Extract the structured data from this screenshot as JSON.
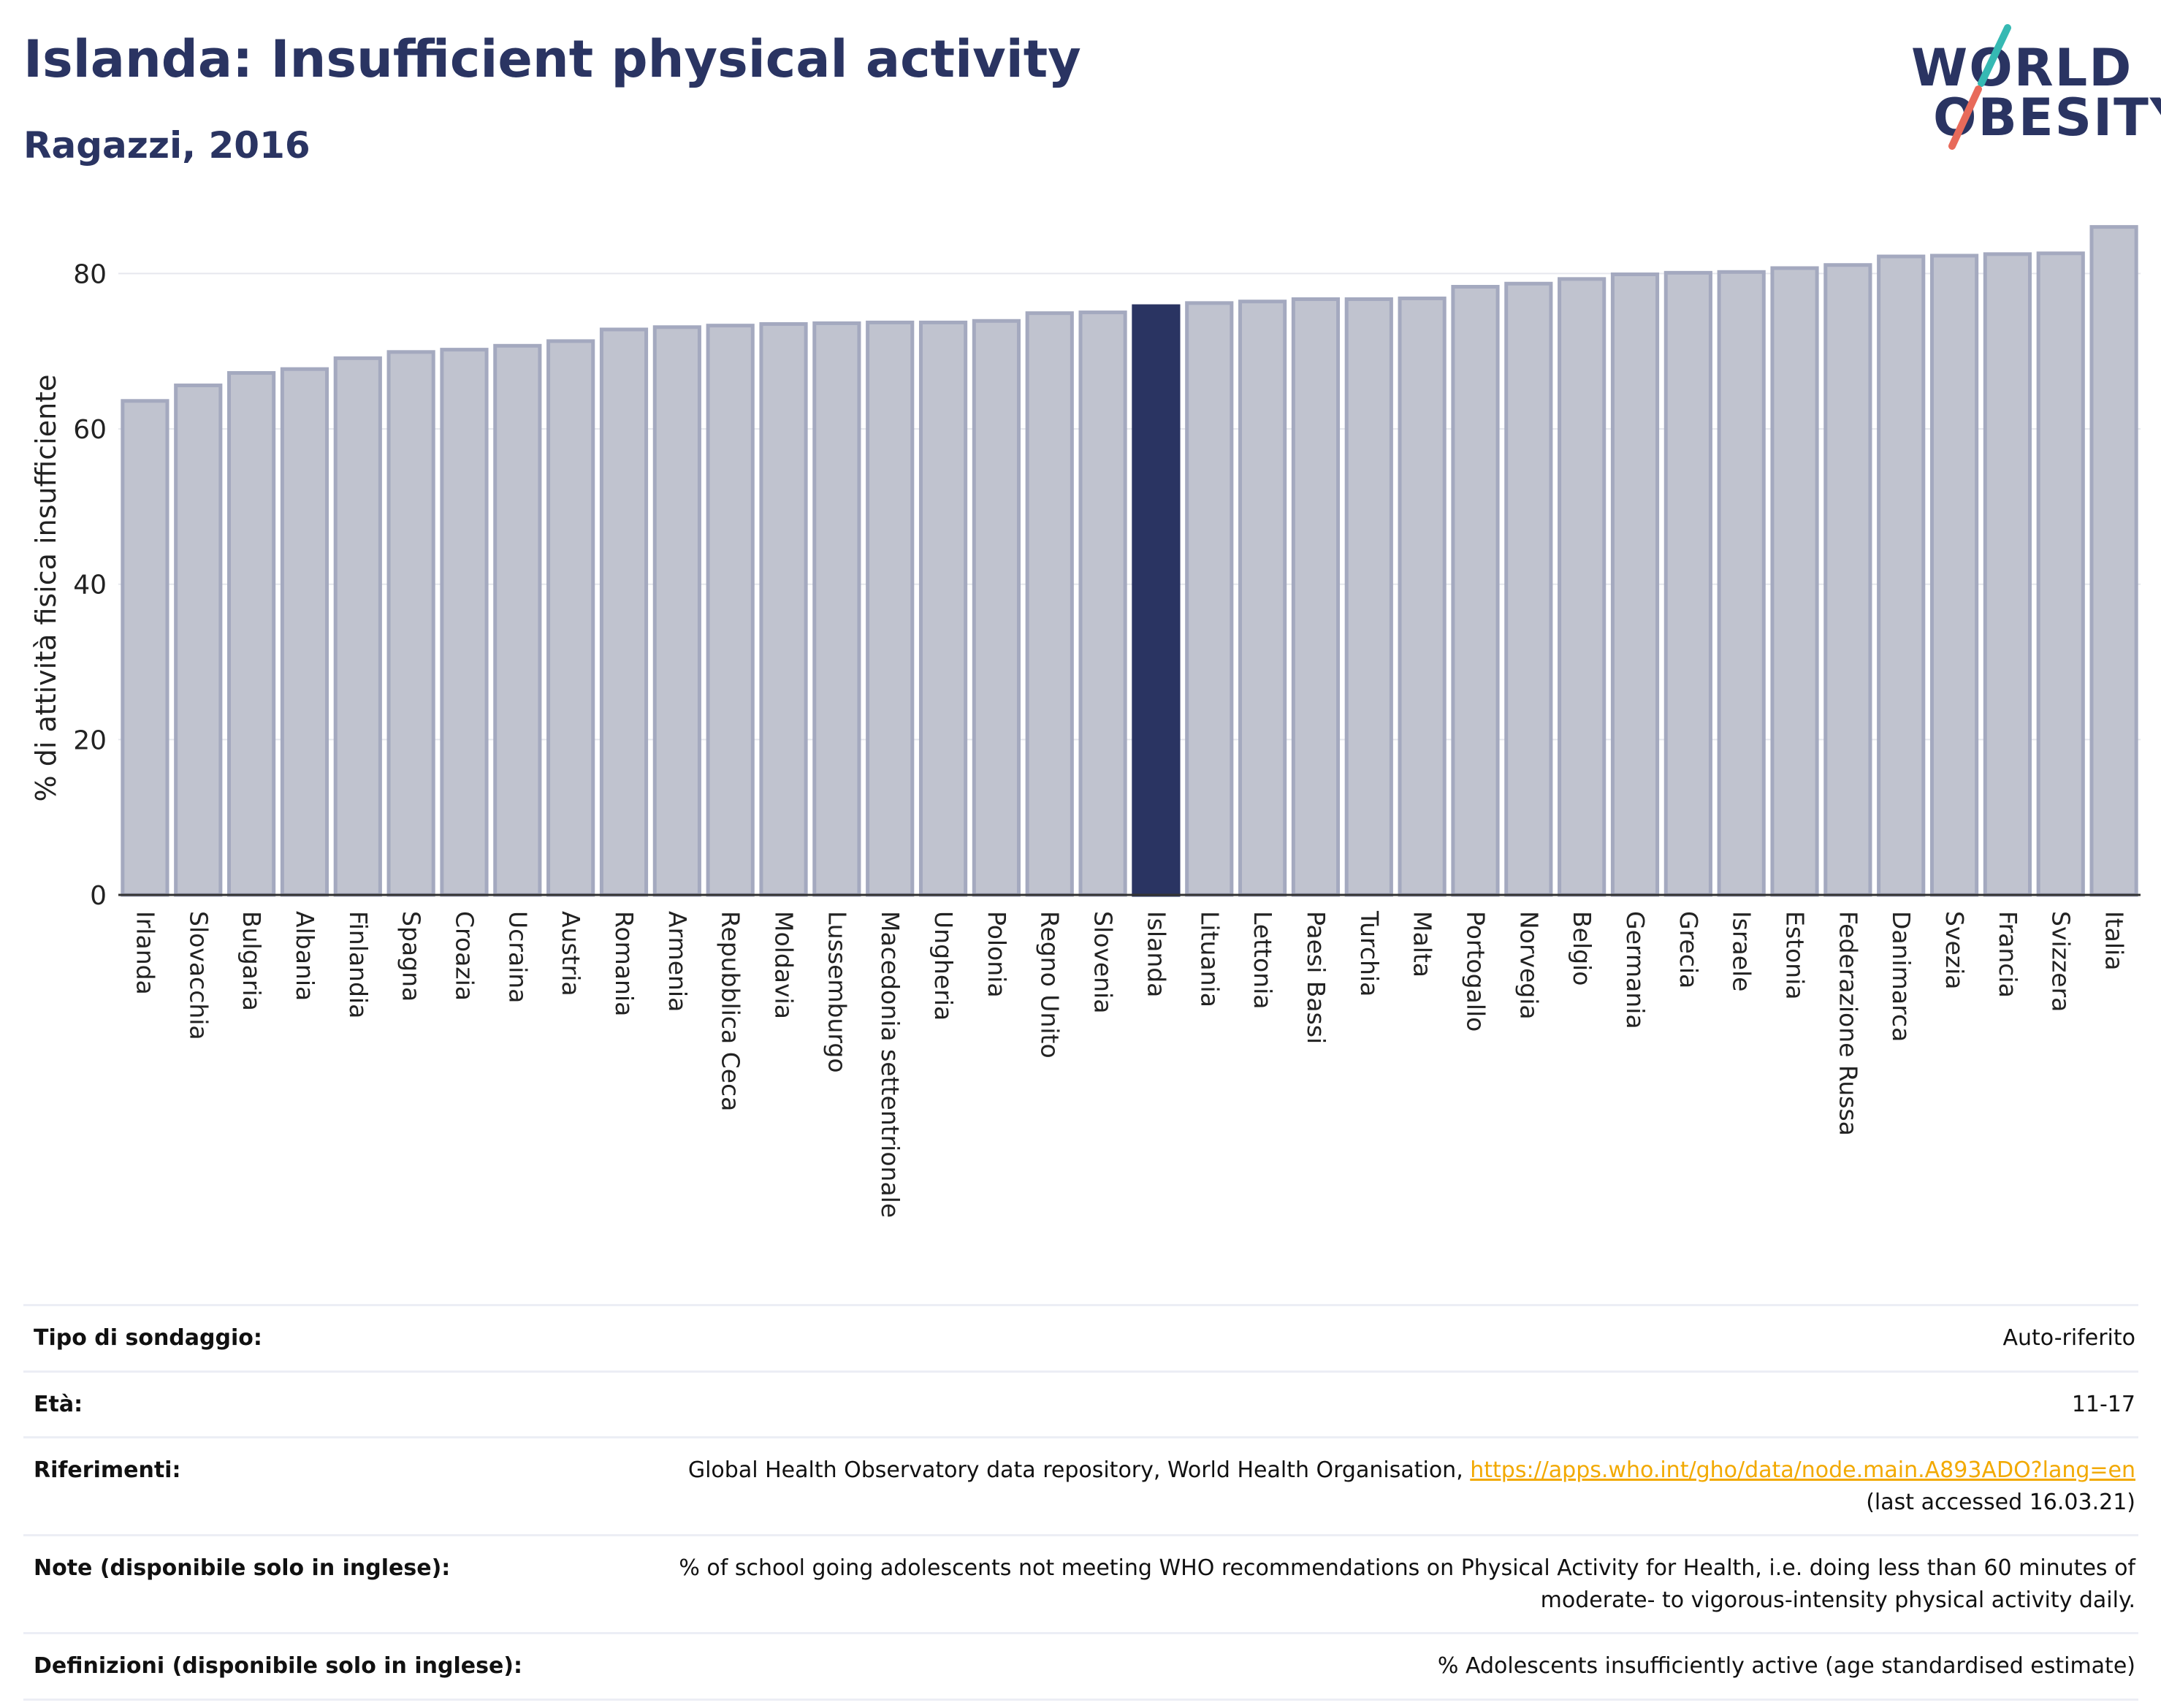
{
  "header": {
    "title": "Islanda: Insufficient physical activity",
    "subtitle": "Ragazzi, 2016"
  },
  "logo": {
    "line1": "WORLD",
    "line2": "OBESITY",
    "accent_colors": [
      "#36b9b3",
      "#e86a5a"
    ]
  },
  "colors": {
    "bar": "#c0c3cf",
    "bar_border": "#a4a9bf",
    "highlight": "#2a3462",
    "grid": "#e6e8ee",
    "axis": "#333333"
  },
  "chart_data": {
    "type": "bar",
    "title": "Islanda: Insufficient physical activity",
    "subtitle": "Ragazzi, 2016",
    "xlabel": "",
    "ylabel": "% di attività fisica insufficiente",
    "ylim": [
      0,
      87
    ],
    "yticks": [
      0,
      20,
      40,
      60,
      80
    ],
    "grid": true,
    "highlight": "Islanda",
    "categories": [
      "Irlanda",
      "Slovacchia",
      "Bulgaria",
      "Albania",
      "Finlandia",
      "Spagna",
      "Croazia",
      "Ucraina",
      "Austria",
      "Romania",
      "Armenia",
      "Repubblica Ceca",
      "Moldavia",
      "Lussemburgo",
      "Macedonia settentrionale",
      "Ungheria",
      "Polonia",
      "Regno Unito",
      "Slovenia",
      "Islanda",
      "Lituania",
      "Lettonia",
      "Paesi Bassi",
      "Turchia",
      "Malta",
      "Portogallo",
      "Norvegia",
      "Belgio",
      "Germania",
      "Grecia",
      "Israele",
      "Estonia",
      "Federazione Russa",
      "Danimarca",
      "Svezia",
      "Francia",
      "Svizzera",
      "Italia"
    ],
    "values": [
      63.6,
      65.6,
      67.2,
      67.7,
      69.1,
      69.9,
      70.2,
      70.7,
      71.3,
      72.8,
      73.1,
      73.3,
      73.5,
      73.6,
      73.7,
      73.7,
      73.9,
      74.9,
      75.0,
      75.8,
      76.2,
      76.4,
      76.7,
      76.7,
      76.8,
      78.3,
      78.7,
      79.3,
      79.9,
      80.1,
      80.2,
      80.7,
      81.1,
      82.2,
      82.3,
      82.5,
      82.6,
      86.0
    ]
  },
  "meta": {
    "rows": [
      {
        "key": "Tipo di sondaggio:",
        "value": "Auto-riferito"
      },
      {
        "key": "Età:",
        "value": "11-17"
      },
      {
        "key": "Riferimenti:",
        "value_prefix": "Global Health Observatory data repository, World Health Organisation, ",
        "link": "https://apps.who.int/gho/data/node.main.A893ADO?lang=en",
        "value_suffix": "(last accessed 16.03.21)"
      },
      {
        "key": "Note (disponibile solo in inglese):",
        "value_line1": "% of school going adolescents not meeting WHO recommendations on Physical Activity for Health, i.e. doing less than 60 minutes of",
        "value_line2": "moderate- to vigorous-intensity physical activity daily."
      },
      {
        "key": "Definizioni (disponibile solo in inglese):",
        "value": "% Adolescents insufficiently active (age standardised estimate)"
      }
    ]
  }
}
